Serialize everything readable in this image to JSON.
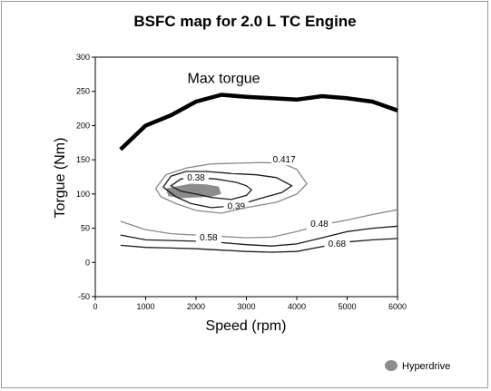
{
  "chart_data": {
    "type": "contour",
    "title": "BSFC map for 2.0 L TC Engine",
    "xlabel": "Speed (rpm)",
    "ylabel": "Torgue (Nm)",
    "xlim": [
      0,
      6000
    ],
    "ylim": [
      -50,
      300
    ],
    "xticks": [
      "0",
      "1000",
      "2000",
      "3000",
      "4000",
      "5000",
      "6000"
    ],
    "yticks": [
      "-50",
      "0",
      "50",
      "100",
      "150",
      "200",
      "250",
      "300"
    ],
    "grid": false,
    "legend": {
      "position": "bottom-right",
      "entries": [
        "Hyperdrive"
      ]
    },
    "annotations": [
      {
        "text": "Max torgue",
        "x": 2550,
        "y": 262
      }
    ],
    "max_torque_curve": {
      "x": [
        500,
        1000,
        1500,
        2000,
        2500,
        3000,
        3500,
        4000,
        4500,
        5000,
        5500,
        6000
      ],
      "y": [
        165,
        200,
        215,
        235,
        245,
        242,
        240,
        238,
        243,
        240,
        235,
        222
      ]
    },
    "contours": [
      {
        "label": "0.38",
        "closed": true,
        "label_x": 2000,
        "label_y": 120,
        "x": [
          1500,
          1700,
          2000,
          2400,
          2800,
          3000,
          3100,
          3000,
          2700,
          2300,
          2000,
          1700,
          1500
        ],
        "y": [
          112,
          122,
          124,
          122,
          117,
          112,
          106,
          98,
          92,
          95,
          100,
          104,
          112
        ]
      },
      {
        "label": "0.39",
        "closed": true,
        "label_x": 2800,
        "label_y": 78,
        "x": [
          1350,
          1500,
          1800,
          2200,
          2700,
          3200,
          3600,
          3900,
          3700,
          3300,
          2800,
          2300,
          1900,
          1600,
          1350
        ],
        "y": [
          110,
          126,
          133,
          133,
          130,
          128,
          124,
          112,
          102,
          94,
          83,
          80,
          86,
          96,
          110
        ]
      },
      {
        "label": "0.417",
        "closed": true,
        "label_x": 3750,
        "label_y": 146,
        "x": [
          1200,
          1400,
          1800,
          2300,
          2800,
          3300,
          3700,
          4000,
          4200,
          4000,
          3600,
          3000,
          2500,
          2000,
          1600,
          1300,
          1200
        ],
        "y": [
          108,
          128,
          138,
          144,
          145,
          146,
          145,
          136,
          115,
          100,
          88,
          80,
          72,
          76,
          86,
          96,
          108
        ]
      },
      {
        "label": "0.48",
        "closed": false,
        "label_x": 4450,
        "label_y": 52,
        "x": [
          500,
          1000,
          1500,
          2000,
          2500,
          3000,
          3500,
          4000,
          4500,
          5000,
          5500,
          6000
        ],
        "y": [
          60,
          48,
          42,
          40,
          38,
          36,
          37,
          45,
          55,
          62,
          70,
          77
        ]
      },
      {
        "label": "0.58",
        "closed": false,
        "label_x": 2250,
        "label_y": 32,
        "x": [
          500,
          1000,
          1500,
          2000,
          2500,
          3000,
          3500,
          4000,
          4500,
          5000,
          5500,
          6000
        ],
        "y": [
          40,
          33,
          32,
          31,
          29,
          26,
          24,
          27,
          36,
          45,
          50,
          53
        ]
      },
      {
        "label": "0.68",
        "closed": false,
        "label_x": 4800,
        "label_y": 23,
        "x": [
          500,
          1000,
          1500,
          2000,
          2500,
          3000,
          3500,
          4000,
          4500,
          5000,
          5500,
          6000
        ],
        "y": [
          25,
          22,
          21,
          20,
          18,
          16,
          15,
          16,
          23,
          30,
          33,
          35
        ]
      }
    ],
    "hyperdrive_region": {
      "name": "Hyperdrive",
      "x": [
        1400,
        1600,
        1900,
        2200,
        2450,
        2500,
        2300,
        2000,
        1700,
        1450,
        1400
      ],
      "y": [
        108,
        111,
        115,
        114,
        111,
        100,
        96,
        95,
        94,
        97,
        108
      ]
    }
  },
  "colors": {
    "contour_light": "#8a8a8a",
    "contour_dark": "#1a1a1a",
    "hyperdrive_fill": "#8c8c8c",
    "max_torque": "#000000"
  }
}
